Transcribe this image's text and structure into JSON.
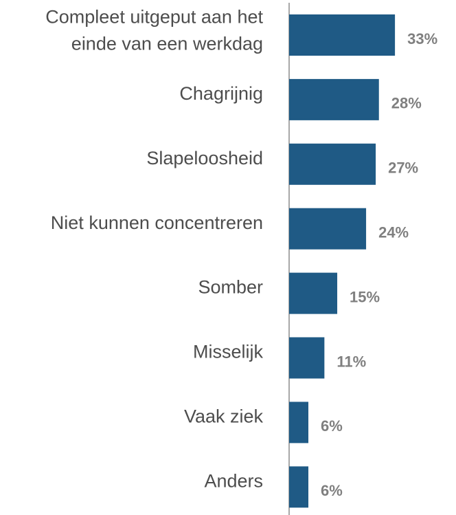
{
  "chart_data": {
    "type": "bar",
    "orientation": "horizontal",
    "categories": [
      "Compleet uitgeput aan het einde van een werkdag",
      "Chagrijnig",
      "Slapeloosheid",
      "Niet kunnen concentreren",
      "Somber",
      "Misselijk",
      "Vaak ziek",
      "Anders"
    ],
    "values": [
      33,
      28,
      27,
      24,
      15,
      11,
      6,
      6
    ],
    "value_labels": [
      "33%",
      "28%",
      "27%",
      "24%",
      "15%",
      "11%",
      "6%",
      "6%"
    ],
    "color": "#1f5a85"
  }
}
